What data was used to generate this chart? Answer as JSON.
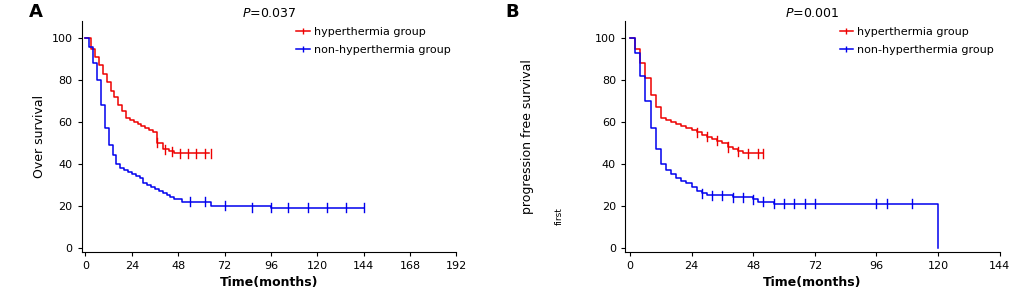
{
  "panel_A": {
    "title": "P=0.037",
    "ylabel": "Over survival",
    "xlabel": "Time(months)",
    "xlim": [
      -2,
      192
    ],
    "ylim": [
      -2,
      108
    ],
    "xticks": [
      0,
      24,
      48,
      72,
      96,
      120,
      144,
      168,
      192
    ],
    "yticks": [
      0,
      20,
      40,
      60,
      80,
      100
    ],
    "label": "A",
    "red_curve": {
      "x": [
        0,
        3,
        5,
        7,
        9,
        11,
        13,
        15,
        17,
        19,
        21,
        23,
        25,
        27,
        29,
        31,
        33,
        35,
        37,
        40,
        43,
        46,
        49,
        52,
        55,
        58,
        61,
        64
      ],
      "y": [
        100,
        95,
        91,
        87,
        83,
        79,
        75,
        72,
        68,
        65,
        62,
        61,
        60,
        59,
        58,
        57,
        56,
        55,
        50,
        47,
        46,
        45,
        45,
        45,
        45,
        45,
        45,
        45
      ],
      "censor_x": [
        37,
        41,
        45,
        49,
        53,
        57,
        62,
        65
      ],
      "censor_y": [
        50,
        47,
        46,
        45,
        45,
        45,
        45,
        45
      ]
    },
    "blue_curve": {
      "x": [
        0,
        2,
        4,
        6,
        8,
        10,
        12,
        14,
        16,
        18,
        20,
        22,
        24,
        26,
        28,
        30,
        32,
        34,
        36,
        38,
        40,
        42,
        44,
        46,
        48,
        50,
        52,
        54,
        56,
        58,
        60,
        62,
        65,
        68,
        72,
        96,
        100,
        110,
        120,
        130,
        140,
        144
      ],
      "y": [
        100,
        96,
        88,
        80,
        68,
        57,
        49,
        44,
        40,
        38,
        37,
        36,
        35,
        34,
        33,
        31,
        30,
        29,
        28,
        27,
        26,
        25,
        24,
        23,
        23,
        22,
        22,
        22,
        22,
        22,
        22,
        22,
        20,
        20,
        20,
        19,
        19,
        19,
        19,
        19,
        19,
        19
      ],
      "censor_x": [
        54,
        62,
        72,
        86,
        96,
        105,
        115,
        125,
        135,
        144
      ],
      "censor_y": [
        22,
        22,
        20,
        19,
        19,
        19,
        19,
        19,
        19,
        19
      ]
    }
  },
  "panel_B": {
    "title": "P=0.001",
    "ylabel": "progression free survival",
    "ylabel_sub": "first",
    "xlabel": "Time(months)",
    "xlim": [
      -2,
      144
    ],
    "ylim": [
      -2,
      108
    ],
    "xticks": [
      0,
      24,
      48,
      72,
      96,
      120,
      144
    ],
    "yticks": [
      0,
      20,
      40,
      60,
      80,
      100
    ],
    "label": "B",
    "red_curve": {
      "x": [
        0,
        2,
        4,
        6,
        8,
        10,
        12,
        14,
        16,
        18,
        20,
        22,
        24,
        26,
        28,
        30,
        32,
        34,
        36,
        38,
        40,
        42,
        44,
        46,
        48,
        50,
        52
      ],
      "y": [
        100,
        95,
        88,
        81,
        73,
        67,
        62,
        61,
        60,
        59,
        58,
        57,
        56,
        55,
        54,
        53,
        52,
        51,
        50,
        48,
        47,
        46,
        45,
        45,
        45,
        45,
        45
      ],
      "censor_x": [
        26,
        30,
        34,
        38,
        42,
        46,
        50,
        52
      ],
      "censor_y": [
        55,
        53,
        51,
        48,
        46,
        45,
        45,
        45
      ]
    },
    "blue_curve": {
      "x": [
        0,
        2,
        4,
        6,
        8,
        10,
        12,
        14,
        16,
        18,
        20,
        22,
        24,
        26,
        28,
        30,
        32,
        34,
        36,
        38,
        40,
        42,
        44,
        46,
        48,
        50,
        52,
        56,
        60,
        64,
        68,
        72,
        96,
        120,
        120.1
      ],
      "y": [
        100,
        93,
        82,
        70,
        57,
        47,
        40,
        37,
        35,
        33,
        32,
        31,
        29,
        27,
        26,
        25,
        25,
        25,
        25,
        25,
        24,
        24,
        24,
        24,
        23,
        22,
        22,
        21,
        21,
        21,
        21,
        21,
        21,
        20,
        0
      ],
      "censor_x": [
        28,
        32,
        36,
        40,
        44,
        48,
        52,
        56,
        60,
        64,
        68,
        72,
        96,
        100,
        110
      ],
      "censor_y": [
        26,
        25,
        25,
        24,
        24,
        23,
        22,
        21,
        21,
        21,
        21,
        21,
        21,
        21,
        21
      ]
    }
  },
  "colors": {
    "red": "#EE0000",
    "blue": "#0000EE"
  },
  "legend": {
    "hyperthermia": "hyperthermia group",
    "non_hyperthermia": "non-hyperthermia group"
  },
  "figsize": [
    10.2,
    3.07
  ],
  "dpi": 100
}
